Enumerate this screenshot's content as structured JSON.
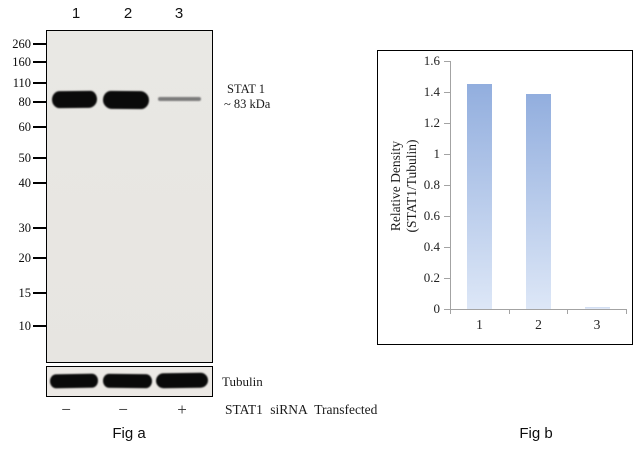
{
  "fig_a": {
    "caption": "Fig a",
    "lane_labels": [
      "1",
      "2",
      "3"
    ],
    "mw_markers": [
      "260",
      "160",
      "110",
      "80",
      "60",
      "50",
      "40",
      "30",
      "20",
      "15",
      "10"
    ],
    "target_annotation": {
      "name": "STAT 1",
      "size": "~ 83 kDa"
    },
    "loading_control": "Tubulin",
    "treatment": {
      "symbols": [
        "−",
        "−",
        "+"
      ],
      "label": "STAT1 siRNA Transfected"
    }
  },
  "fig_b": {
    "caption": "Fig b"
  },
  "chart_data": {
    "type": "bar",
    "categories": [
      "1",
      "2",
      "3"
    ],
    "values": [
      1.45,
      1.39,
      0.01
    ],
    "title": "",
    "xlabel": "",
    "ylabel": "Relative Density (STAT1/Tubulin)",
    "ylabel_line1": "Relative Density",
    "ylabel_line2": "(STAT1/Tubulin)",
    "ylim": [
      0,
      1.6
    ],
    "yticks": [
      1.6,
      1.4,
      1.2,
      1,
      0.8,
      0.6,
      0.4,
      0.2,
      0
    ],
    "ytick_labels": [
      "1.6",
      "1.4",
      "1.2",
      "1",
      "0.8",
      "0.6",
      "0.4",
      "0.2",
      "0"
    ],
    "grid": false,
    "legend": "none",
    "bar_gradient_top": "#92aede",
    "bar_gradient_bottom": "#dde7f7",
    "axis_color": "#a3a3a3"
  }
}
